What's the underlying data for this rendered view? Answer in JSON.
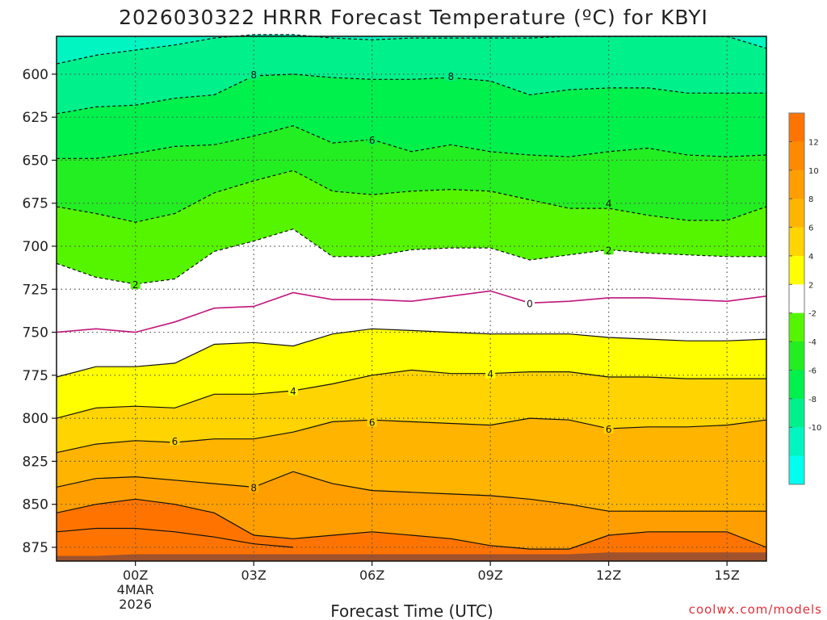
{
  "chart_data": {
    "type": "heatmap",
    "title": "2026030322 HRRR Forecast Temperature (ºC) for KBYI",
    "xlabel": "Forecast Time (UTC)",
    "ylabel": "",
    "credit": "coolwx.com/models",
    "x_ticks": [
      {
        "x": 0,
        "label": "00Z",
        "sublabel1": "4MAR",
        "sublabel2": "2026"
      },
      {
        "x": 3,
        "label": "03Z"
      },
      {
        "x": 6,
        "label": "06Z"
      },
      {
        "x": 9,
        "label": "09Z"
      },
      {
        "x": 12,
        "label": "12Z"
      },
      {
        "x": 15,
        "label": "15Z"
      }
    ],
    "xlim": [
      -2,
      16
    ],
    "y_ticks": [
      600,
      625,
      650,
      675,
      700,
      725,
      750,
      775,
      800,
      825,
      850,
      875
    ],
    "ylim": [
      578,
      883
    ],
    "y_unit": "hPa",
    "grid": true,
    "colorbar": {
      "placement": "right",
      "ticks": [
        12,
        10,
        8,
        6,
        4,
        2,
        -2,
        -4,
        -6,
        -8,
        -10
      ],
      "bands": [
        {
          "from": 12,
          "to": 14,
          "color": "#ff7400"
        },
        {
          "from": 10,
          "to": 12,
          "color": "#ff8a00"
        },
        {
          "from": 8,
          "to": 10,
          "color": "#ff9e00"
        },
        {
          "from": 6,
          "to": 8,
          "color": "#ffb400"
        },
        {
          "from": 4,
          "to": 6,
          "color": "#ffd400"
        },
        {
          "from": 2,
          "to": 4,
          "color": "#ffff00"
        },
        {
          "from": -2,
          "to": 2,
          "color": "#ffffff"
        },
        {
          "from": -4,
          "to": -2,
          "color": "#55f500"
        },
        {
          "from": -6,
          "to": -4,
          "color": "#22ee22"
        },
        {
          "from": -8,
          "to": -6,
          "color": "#00f04c"
        },
        {
          "from": -10,
          "to": -8,
          "color": "#00f08c"
        },
        {
          "from": -12,
          "to": -10,
          "color": "#00f5c0"
        },
        {
          "from": -14,
          "to": -12,
          "color": "#00ffee"
        }
      ]
    },
    "x": [
      -2,
      -1,
      0,
      1,
      2,
      3,
      4,
      5,
      6,
      7,
      8,
      9,
      10,
      11,
      12,
      13,
      14,
      15,
      16
    ],
    "isotherms": [
      {
        "value": 12,
        "pressure": [
          866,
          864,
          864,
          866,
          869,
          873,
          875,
          875,
          875,
          875,
          875,
          875,
          875,
          875,
          875,
          875,
          875,
          875,
          875
        ],
        "closed_region": true
      },
      {
        "value": 10,
        "pressure": [
          855,
          850,
          847,
          850,
          855,
          868,
          870,
          868,
          866,
          868,
          870,
          874,
          876,
          876,
          868,
          866,
          866,
          866,
          875
        ]
      },
      {
        "value": 8,
        "pressure": [
          840,
          835,
          834,
          836,
          838,
          840,
          831,
          838,
          842,
          843,
          844,
          845,
          847,
          850,
          854,
          854,
          854,
          854,
          854
        ],
        "labels": [
          {
            "x": 3,
            "pressure": 840
          }
        ]
      },
      {
        "value": 6,
        "pressure": [
          820,
          815,
          813,
          814,
          812,
          812,
          808,
          802,
          801,
          802,
          803,
          804,
          800,
          801,
          806,
          805,
          805,
          804,
          801
        ],
        "labels": [
          {
            "x": 1,
            "pressure": 813
          },
          {
            "x": 6,
            "pressure": 802
          },
          {
            "x": 12,
            "pressure": 806
          }
        ]
      },
      {
        "value": 4,
        "pressure": [
          800,
          794,
          793,
          794,
          786,
          786,
          784,
          780,
          775,
          772,
          774,
          774,
          773,
          773,
          776,
          776,
          777,
          777,
          777
        ],
        "labels": [
          {
            "x": 4,
            "pressure": 784
          },
          {
            "x": 9,
            "pressure": 774
          }
        ]
      },
      {
        "value": 2,
        "pressure": [
          776,
          770,
          770,
          768,
          757,
          756,
          758,
          751,
          748,
          749,
          750,
          751,
          751,
          751,
          753,
          754,
          755,
          755,
          754
        ]
      },
      {
        "value": 0,
        "pressure": [
          750,
          748,
          750,
          744,
          736,
          735,
          727,
          731,
          731,
          732,
          729,
          726,
          733,
          732,
          730,
          730,
          731,
          732,
          729
        ],
        "labels": [
          {
            "x": 10,
            "pressure": 733
          }
        ]
      },
      {
        "value": -2,
        "pressure": [
          710,
          718,
          722,
          719,
          703,
          697,
          690,
          706,
          706,
          702,
          701,
          701,
          708,
          705,
          702,
          704,
          705,
          706,
          706
        ],
        "labels": [
          {
            "x": 0,
            "pressure": 722
          },
          {
            "x": 12,
            "pressure": 702
          }
        ]
      },
      {
        "value": -4,
        "pressure": [
          677,
          681,
          686,
          681,
          669,
          662,
          656,
          668,
          670,
          668,
          667,
          668,
          673,
          678,
          678,
          682,
          685,
          685,
          677
        ],
        "labels": [
          {
            "x": 12,
            "pressure": 675
          }
        ]
      },
      {
        "value": -6,
        "pressure": [
          649,
          649,
          646,
          642,
          641,
          636,
          630,
          640,
          638,
          645,
          641,
          645,
          647,
          648,
          645,
          643,
          647,
          648,
          647
        ],
        "labels": [
          {
            "x": 6,
            "pressure": 638
          }
        ]
      },
      {
        "value": -8,
        "pressure": [
          623,
          619,
          618,
          614,
          612,
          601,
          600,
          602,
          603,
          603,
          602,
          604,
          612,
          609,
          608,
          608,
          611,
          611,
          611
        ],
        "labels": [
          {
            "x": 3,
            "pressure": 600
          },
          {
            "x": 8,
            "pressure": 601
          }
        ]
      },
      {
        "value": -10,
        "pressure": [
          594,
          589,
          586,
          583,
          579,
          577,
          577,
          579,
          580,
          579,
          579,
          579,
          579,
          578,
          578,
          578,
          578,
          578,
          585
        ]
      }
    ],
    "terrain_color": "#a0522d",
    "surface_pressure": [
      880,
      880,
      879,
      879,
      879,
      879,
      879,
      879,
      879,
      879,
      879,
      879,
      879,
      879,
      878,
      878,
      878,
      878,
      878
    ]
  }
}
